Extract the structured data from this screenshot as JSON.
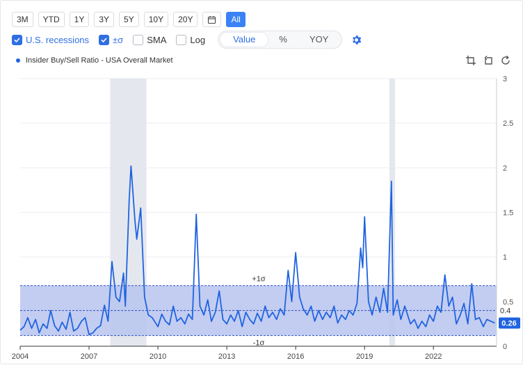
{
  "toolbar": {
    "ranges": [
      "3M",
      "YTD",
      "1Y",
      "3Y",
      "5Y",
      "10Y",
      "20Y"
    ],
    "all_label": "All",
    "calendar_icon": "calendar-icon"
  },
  "options": {
    "recessions_label": "U.S. recessions",
    "recessions_checked": true,
    "sigma_label": "±σ",
    "sigma_checked": true,
    "sma_label": "SMA",
    "sma_checked": false,
    "log_label": "Log",
    "log_checked": false,
    "view_modes": [
      "Value",
      "%",
      "YOY"
    ],
    "active_view": "Value",
    "settings_icon": "gear-icon"
  },
  "legend": {
    "series_name": "Insider Buy/Sell Ratio - USA Overall Market"
  },
  "tools": [
    "crop-icon",
    "crop-reset-icon",
    "refresh-icon"
  ],
  "colors": {
    "line": "#1f63e0",
    "band": "#b9c4ee",
    "recession": "#e4e8ee",
    "accent": "#2f6fe4"
  },
  "chart_data": {
    "type": "line",
    "title": "",
    "xlabel": "",
    "ylabel": "",
    "xlim": [
      2004.0,
      2024.75
    ],
    "ylim": [
      0,
      3
    ],
    "x_ticks": [
      "2004",
      "2007",
      "2010",
      "2013",
      "2016",
      "2019",
      "2022"
    ],
    "y_ticks": [
      "0",
      "0.5",
      "1",
      "1.5",
      "2",
      "2.5",
      "3"
    ],
    "grid": true,
    "mean_label": "0.4",
    "mean": 0.4,
    "upper_band": 0.68,
    "lower_band": 0.12,
    "upper_label": "+1σ",
    "lower_label": "-1σ",
    "last_value_label": "0.26",
    "recessions": [
      [
        2007.92,
        2009.5
      ],
      [
        2020.08,
        2020.33
      ]
    ],
    "series": [
      {
        "name": "Insider Buy/Sell Ratio - USA Overall Market",
        "points": [
          [
            2004.0,
            0.18
          ],
          [
            2004.17,
            0.22
          ],
          [
            2004.33,
            0.32
          ],
          [
            2004.5,
            0.2
          ],
          [
            2004.67,
            0.3
          ],
          [
            2004.83,
            0.15
          ],
          [
            2005.0,
            0.25
          ],
          [
            2005.17,
            0.2
          ],
          [
            2005.33,
            0.4
          ],
          [
            2005.5,
            0.23
          ],
          [
            2005.67,
            0.17
          ],
          [
            2005.83,
            0.27
          ],
          [
            2006.0,
            0.19
          ],
          [
            2006.17,
            0.38
          ],
          [
            2006.33,
            0.17
          ],
          [
            2006.5,
            0.2
          ],
          [
            2006.67,
            0.28
          ],
          [
            2006.83,
            0.32
          ],
          [
            2007.0,
            0.13
          ],
          [
            2007.17,
            0.15
          ],
          [
            2007.33,
            0.2
          ],
          [
            2007.5,
            0.23
          ],
          [
            2007.67,
            0.46
          ],
          [
            2007.83,
            0.28
          ],
          [
            2008.0,
            0.95
          ],
          [
            2008.17,
            0.55
          ],
          [
            2008.33,
            0.5
          ],
          [
            2008.5,
            0.82
          ],
          [
            2008.58,
            0.45
          ],
          [
            2008.75,
            1.65
          ],
          [
            2008.83,
            2.02
          ],
          [
            2009.0,
            1.4
          ],
          [
            2009.08,
            1.2
          ],
          [
            2009.25,
            1.55
          ],
          [
            2009.42,
            0.55
          ],
          [
            2009.58,
            0.35
          ],
          [
            2009.75,
            0.32
          ],
          [
            2010.0,
            0.22
          ],
          [
            2010.17,
            0.36
          ],
          [
            2010.33,
            0.28
          ],
          [
            2010.5,
            0.24
          ],
          [
            2010.67,
            0.45
          ],
          [
            2010.83,
            0.28
          ],
          [
            2011.0,
            0.32
          ],
          [
            2011.17,
            0.25
          ],
          [
            2011.33,
            0.36
          ],
          [
            2011.5,
            0.3
          ],
          [
            2011.67,
            1.48
          ],
          [
            2011.83,
            0.45
          ],
          [
            2012.0,
            0.35
          ],
          [
            2012.17,
            0.52
          ],
          [
            2012.33,
            0.28
          ],
          [
            2012.5,
            0.38
          ],
          [
            2012.67,
            0.62
          ],
          [
            2012.83,
            0.3
          ],
          [
            2013.0,
            0.25
          ],
          [
            2013.17,
            0.35
          ],
          [
            2013.33,
            0.28
          ],
          [
            2013.5,
            0.4
          ],
          [
            2013.67,
            0.22
          ],
          [
            2013.83,
            0.38
          ],
          [
            2014.0,
            0.3
          ],
          [
            2014.17,
            0.25
          ],
          [
            2014.33,
            0.37
          ],
          [
            2014.5,
            0.28
          ],
          [
            2014.67,
            0.45
          ],
          [
            2014.83,
            0.32
          ],
          [
            2015.0,
            0.38
          ],
          [
            2015.17,
            0.3
          ],
          [
            2015.33,
            0.42
          ],
          [
            2015.5,
            0.35
          ],
          [
            2015.67,
            0.85
          ],
          [
            2015.83,
            0.5
          ],
          [
            2016.0,
            1.05
          ],
          [
            2016.17,
            0.55
          ],
          [
            2016.33,
            0.42
          ],
          [
            2016.5,
            0.35
          ],
          [
            2016.67,
            0.45
          ],
          [
            2016.83,
            0.28
          ],
          [
            2017.0,
            0.4
          ],
          [
            2017.17,
            0.3
          ],
          [
            2017.33,
            0.38
          ],
          [
            2017.5,
            0.32
          ],
          [
            2017.67,
            0.45
          ],
          [
            2017.83,
            0.26
          ],
          [
            2018.0,
            0.35
          ],
          [
            2018.17,
            0.3
          ],
          [
            2018.33,
            0.4
          ],
          [
            2018.5,
            0.35
          ],
          [
            2018.67,
            0.48
          ],
          [
            2018.83,
            1.1
          ],
          [
            2018.92,
            0.88
          ],
          [
            2019.0,
            1.45
          ],
          [
            2019.17,
            0.5
          ],
          [
            2019.33,
            0.35
          ],
          [
            2019.5,
            0.55
          ],
          [
            2019.67,
            0.38
          ],
          [
            2019.83,
            0.65
          ],
          [
            2020.0,
            0.38
          ],
          [
            2020.17,
            1.85
          ],
          [
            2020.25,
            0.35
          ],
          [
            2020.42,
            0.52
          ],
          [
            2020.58,
            0.3
          ],
          [
            2020.75,
            0.45
          ],
          [
            2021.0,
            0.25
          ],
          [
            2021.17,
            0.3
          ],
          [
            2021.33,
            0.2
          ],
          [
            2021.5,
            0.28
          ],
          [
            2021.67,
            0.22
          ],
          [
            2021.83,
            0.35
          ],
          [
            2022.0,
            0.28
          ],
          [
            2022.17,
            0.45
          ],
          [
            2022.33,
            0.38
          ],
          [
            2022.5,
            0.8
          ],
          [
            2022.67,
            0.45
          ],
          [
            2022.83,
            0.55
          ],
          [
            2023.0,
            0.25
          ],
          [
            2023.17,
            0.35
          ],
          [
            2023.33,
            0.48
          ],
          [
            2023.5,
            0.25
          ],
          [
            2023.67,
            0.7
          ],
          [
            2023.83,
            0.3
          ],
          [
            2024.0,
            0.32
          ],
          [
            2024.17,
            0.22
          ],
          [
            2024.33,
            0.3
          ],
          [
            2024.5,
            0.28
          ],
          [
            2024.67,
            0.26
          ]
        ]
      }
    ]
  }
}
